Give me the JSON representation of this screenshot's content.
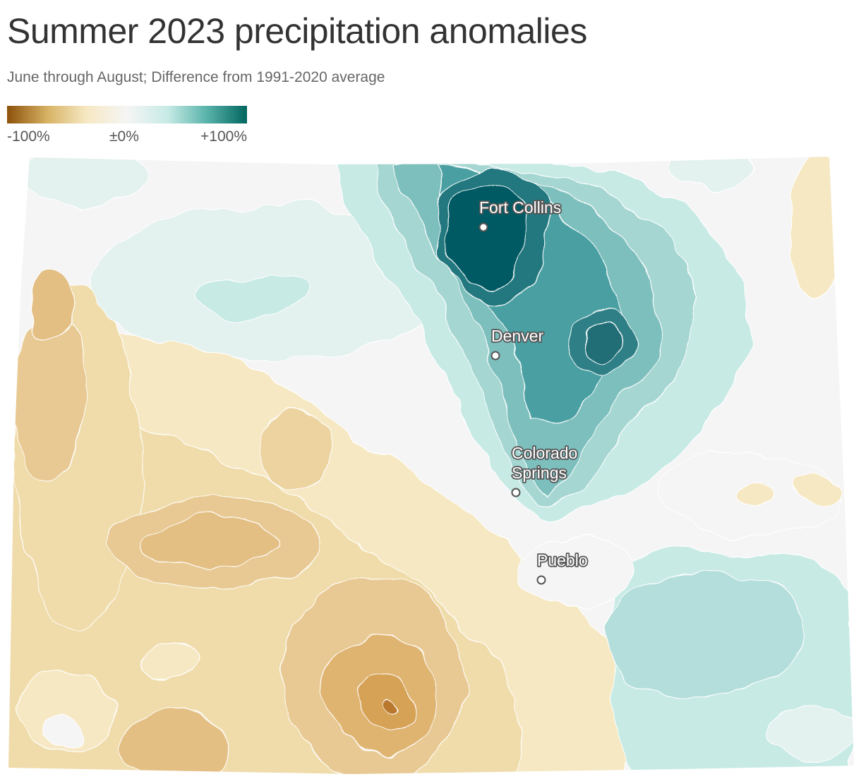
{
  "title": "Summer 2023 precipitation anomalies",
  "subtitle": "June through August; Difference from 1991-2020 average",
  "legend": {
    "min_label": "-100%",
    "mid_label": "±0%",
    "max_label": "+100%",
    "colors": [
      "#8c510a",
      "#d8b365",
      "#f6e8c3",
      "#f5f5f5",
      "#c7eae5",
      "#5ab4ac",
      "#01665e"
    ]
  },
  "cities": [
    {
      "name": "Fort Collins"
    },
    {
      "name": "Denver"
    },
    {
      "name": "Colorado Springs"
    },
    {
      "name": "Pueblo"
    }
  ]
}
